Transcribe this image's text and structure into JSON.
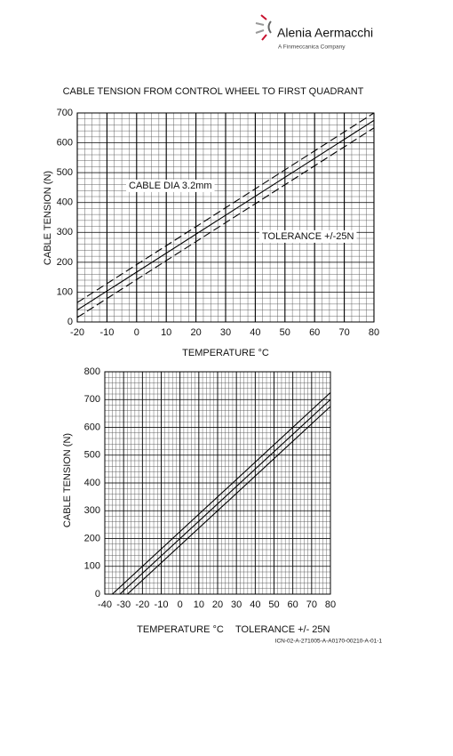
{
  "header": {
    "brand": "Alenia Aermacchi",
    "tagline": "A Finmeccanica Company"
  },
  "chart_data": [
    {
      "type": "line",
      "title": "CABLE TENSION FROM CONTROL WHEEL TO FIRST QUADRANT",
      "x_label": "TEMPERATURE °C",
      "y_label": "CABLE TENSION (N)",
      "annotations": [
        "CABLE DIA 3.2mm",
        "TOLERANCE +/-25N"
      ],
      "xlim": [
        -20,
        80
      ],
      "xticks": [
        -20,
        -10,
        0,
        10,
        20,
        30,
        40,
        50,
        60,
        70,
        80
      ],
      "ylim": [
        0,
        700
      ],
      "yticks": [
        0,
        100,
        200,
        300,
        400,
        500,
        600,
        700
      ],
      "grid": true,
      "minor_xstep": 2.5,
      "minor_ystep": 20,
      "series": [
        {
          "x": [
            -20,
            80
          ],
          "values": [
            65,
            700
          ],
          "color": "#000000",
          "style": "dashed"
        },
        {
          "x": [
            -20,
            80
          ],
          "values": [
            40,
            675
          ],
          "color": "#000000",
          "style": "solid"
        },
        {
          "x": [
            -20,
            80
          ],
          "values": [
            15,
            650
          ],
          "color": "#000000",
          "style": "dashed"
        }
      ]
    },
    {
      "type": "line",
      "x_label": "TEMPERATURE °C",
      "y_label": "CABLE TENSION (N)",
      "annotations": [
        "TOLERANCE +/- 25N"
      ],
      "xlim": [
        -40,
        80
      ],
      "xticks": [
        -40,
        -30,
        -20,
        -10,
        0,
        10,
        20,
        30,
        40,
        50,
        60,
        70,
        80
      ],
      "ylim": [
        0,
        800
      ],
      "yticks": [
        0,
        100,
        200,
        300,
        400,
        500,
        600,
        700,
        800
      ],
      "grid": true,
      "minor_xstep": 2,
      "minor_ystep": 20,
      "series": [
        {
          "x": [
            -36,
            80
          ],
          "values": [
            0,
            725
          ],
          "color": "#000000",
          "style": "solid"
        },
        {
          "x": [
            -32,
            80
          ],
          "values": [
            0,
            700
          ],
          "color": "#000000",
          "style": "solid"
        },
        {
          "x": [
            -28,
            80
          ],
          "values": [
            0,
            675
          ],
          "color": "#000000",
          "style": "solid"
        }
      ]
    }
  ],
  "footer": {
    "reference": "ICN-02-A-271005-A-A0170-00210-A-01-1"
  }
}
